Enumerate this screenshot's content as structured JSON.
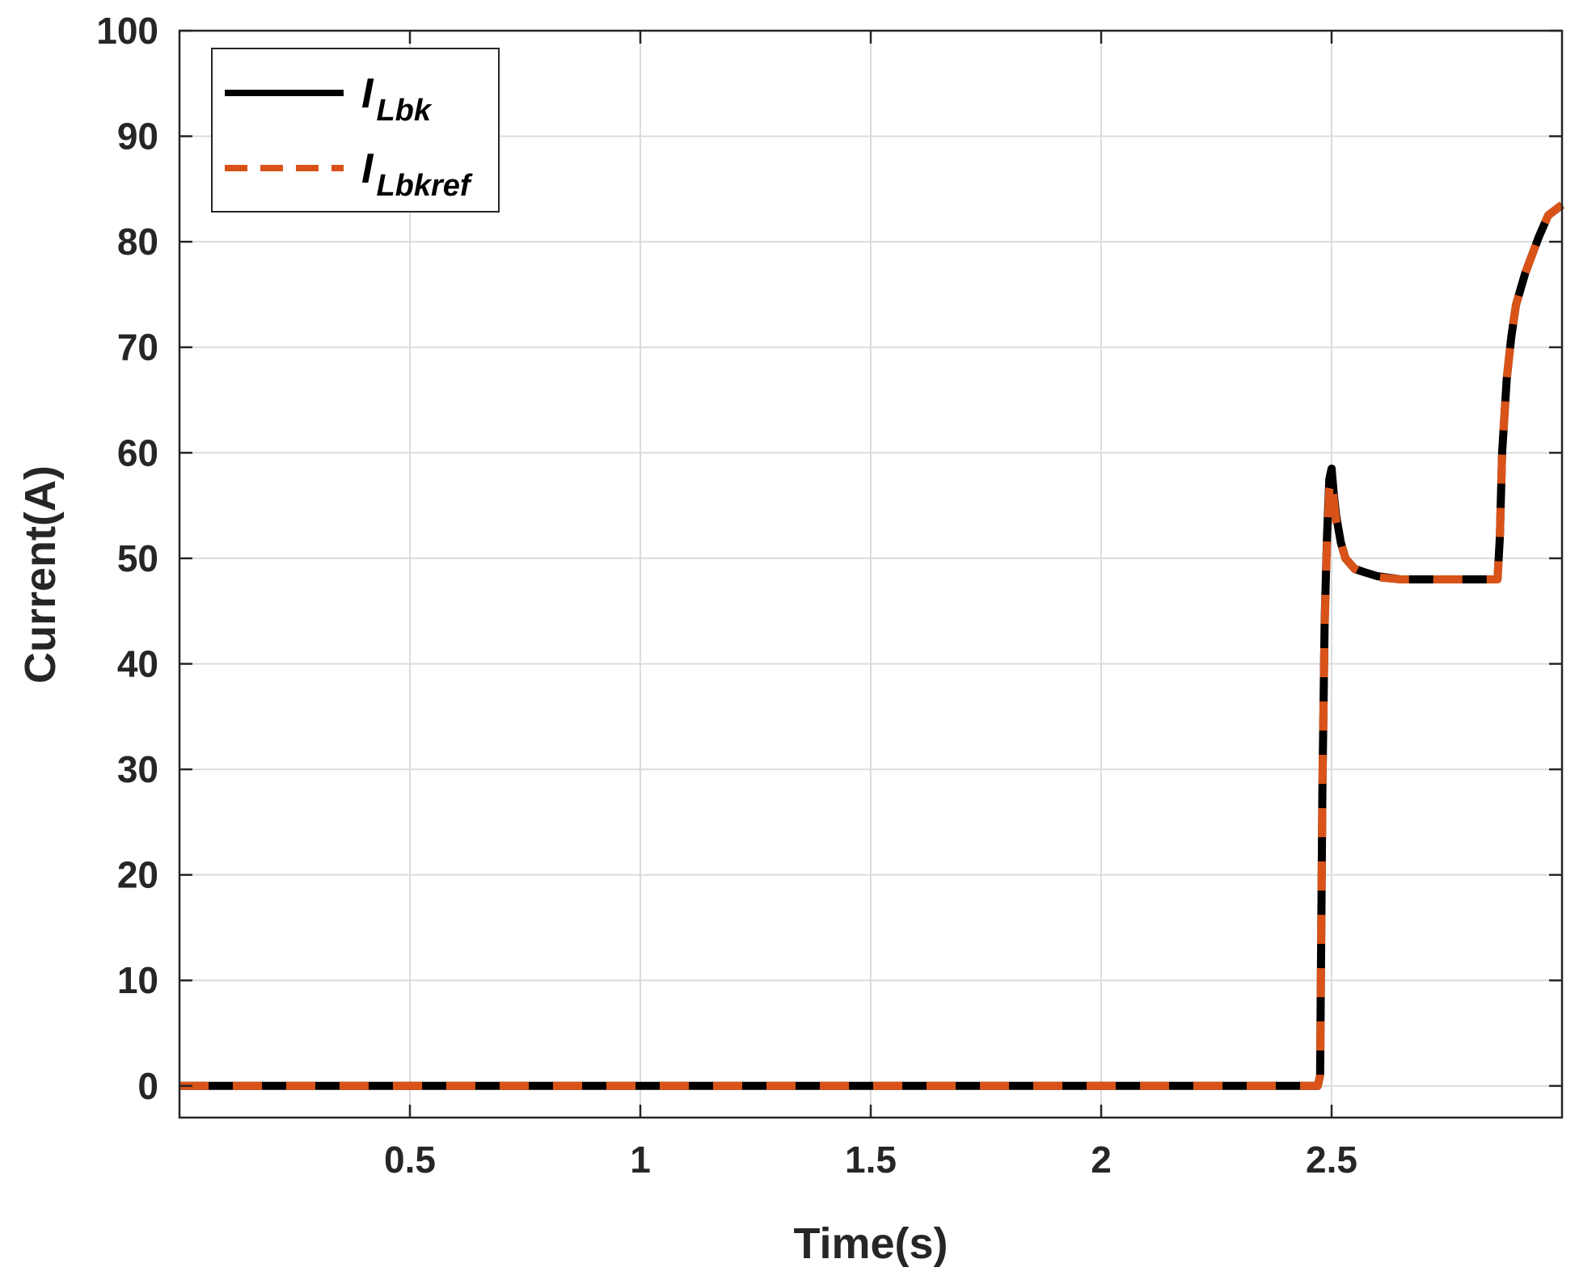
{
  "chart_data": {
    "type": "line",
    "xlabel": "Time(s)",
    "ylabel": "Current(A)",
    "xlim": [
      0,
      3
    ],
    "ylim": [
      -3,
      100
    ],
    "xticks": [
      0.5,
      1,
      1.5,
      2,
      2.5
    ],
    "xtick_labels": [
      "0.5",
      "1",
      "1.5",
      "2",
      "2.5"
    ],
    "yticks": [
      0,
      10,
      20,
      30,
      40,
      50,
      60,
      70,
      80,
      90,
      100
    ],
    "ytick_labels": [
      "0",
      "10",
      "20",
      "30",
      "40",
      "50",
      "60",
      "70",
      "80",
      "90",
      "100"
    ],
    "grid": true,
    "legend_position": "top-left",
    "series": [
      {
        "name": "I_Lbk",
        "legend_main": "I",
        "legend_sub": "Lbk",
        "color": "#000000",
        "style": "solid",
        "x": [
          0,
          2.47,
          2.475,
          2.48,
          2.485,
          2.49,
          2.495,
          2.5,
          2.505,
          2.51,
          2.52,
          2.53,
          2.54,
          2.55,
          2.57,
          2.6,
          2.65,
          2.7,
          2.75,
          2.8,
          2.85,
          2.86,
          2.865,
          2.87,
          2.88,
          2.89,
          2.9,
          2.92,
          2.95,
          2.97,
          3.0
        ],
        "y": [
          0,
          0,
          1,
          28,
          44,
          52,
          57.5,
          58.5,
          56,
          54,
          51.5,
          50,
          49.5,
          49,
          48.7,
          48.3,
          48,
          48,
          48,
          48,
          48,
          48,
          52,
          60,
          67,
          71,
          74,
          77,
          80.5,
          82.5,
          83.5
        ]
      },
      {
        "name": "I_Lbkref",
        "legend_main": "I",
        "legend_sub": "Lbkref",
        "color": "#D95319",
        "style": "dashed",
        "x": [
          0,
          2.47,
          2.475,
          2.48,
          2.485,
          2.49,
          2.495,
          2.5,
          2.505,
          2.51,
          2.52,
          2.53,
          2.54,
          2.55,
          2.57,
          2.6,
          2.65,
          2.7,
          2.75,
          2.8,
          2.85,
          2.86,
          2.865,
          2.87,
          2.88,
          2.89,
          2.9,
          2.92,
          2.95,
          2.97,
          3.0
        ],
        "y": [
          0,
          0,
          1,
          28,
          43.5,
          51.5,
          56.5,
          57.5,
          55.5,
          53.5,
          51.5,
          50,
          49.5,
          49,
          48.5,
          48.2,
          48,
          48,
          48,
          48,
          48,
          48,
          52,
          60,
          67,
          71,
          74,
          77,
          80.5,
          82.5,
          83.5
        ]
      }
    ]
  }
}
